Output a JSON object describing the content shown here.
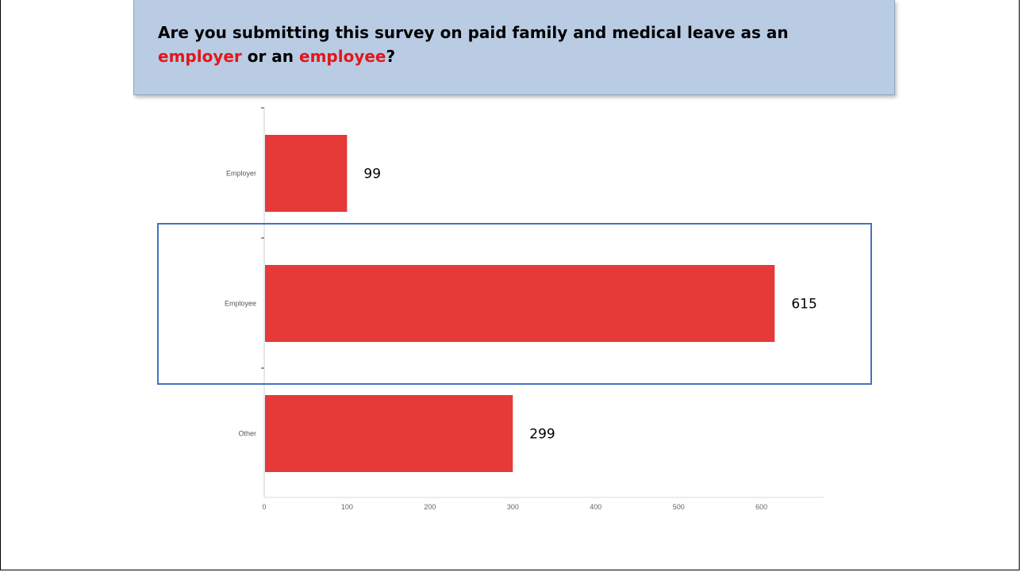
{
  "slide": {
    "title_parts": [
      {
        "text": "Are you submitting this survey on paid family and medical leave as an ",
        "highlight": false
      },
      {
        "text": "employer",
        "highlight": true
      },
      {
        "text": " or an ",
        "highlight": false
      },
      {
        "text": "employee",
        "highlight": true
      },
      {
        "text": "?",
        "highlight": false
      }
    ],
    "highlight_color": "#e3161b",
    "title_box_color": "#b9cce4"
  },
  "chart_data": {
    "type": "bar",
    "orientation": "horizontal",
    "categories": [
      "Employer",
      "Employee",
      "Other"
    ],
    "values": [
      99,
      615,
      299
    ],
    "data_labels": [
      "99",
      "615",
      "299"
    ],
    "xlim": [
      0,
      675
    ],
    "xticks": [
      0,
      100,
      200,
      300,
      400,
      500,
      600
    ],
    "bar_color": "#e53a37",
    "highlighted_category": "Employee",
    "highlight_box_color": "#4472c4",
    "grid": false
  }
}
